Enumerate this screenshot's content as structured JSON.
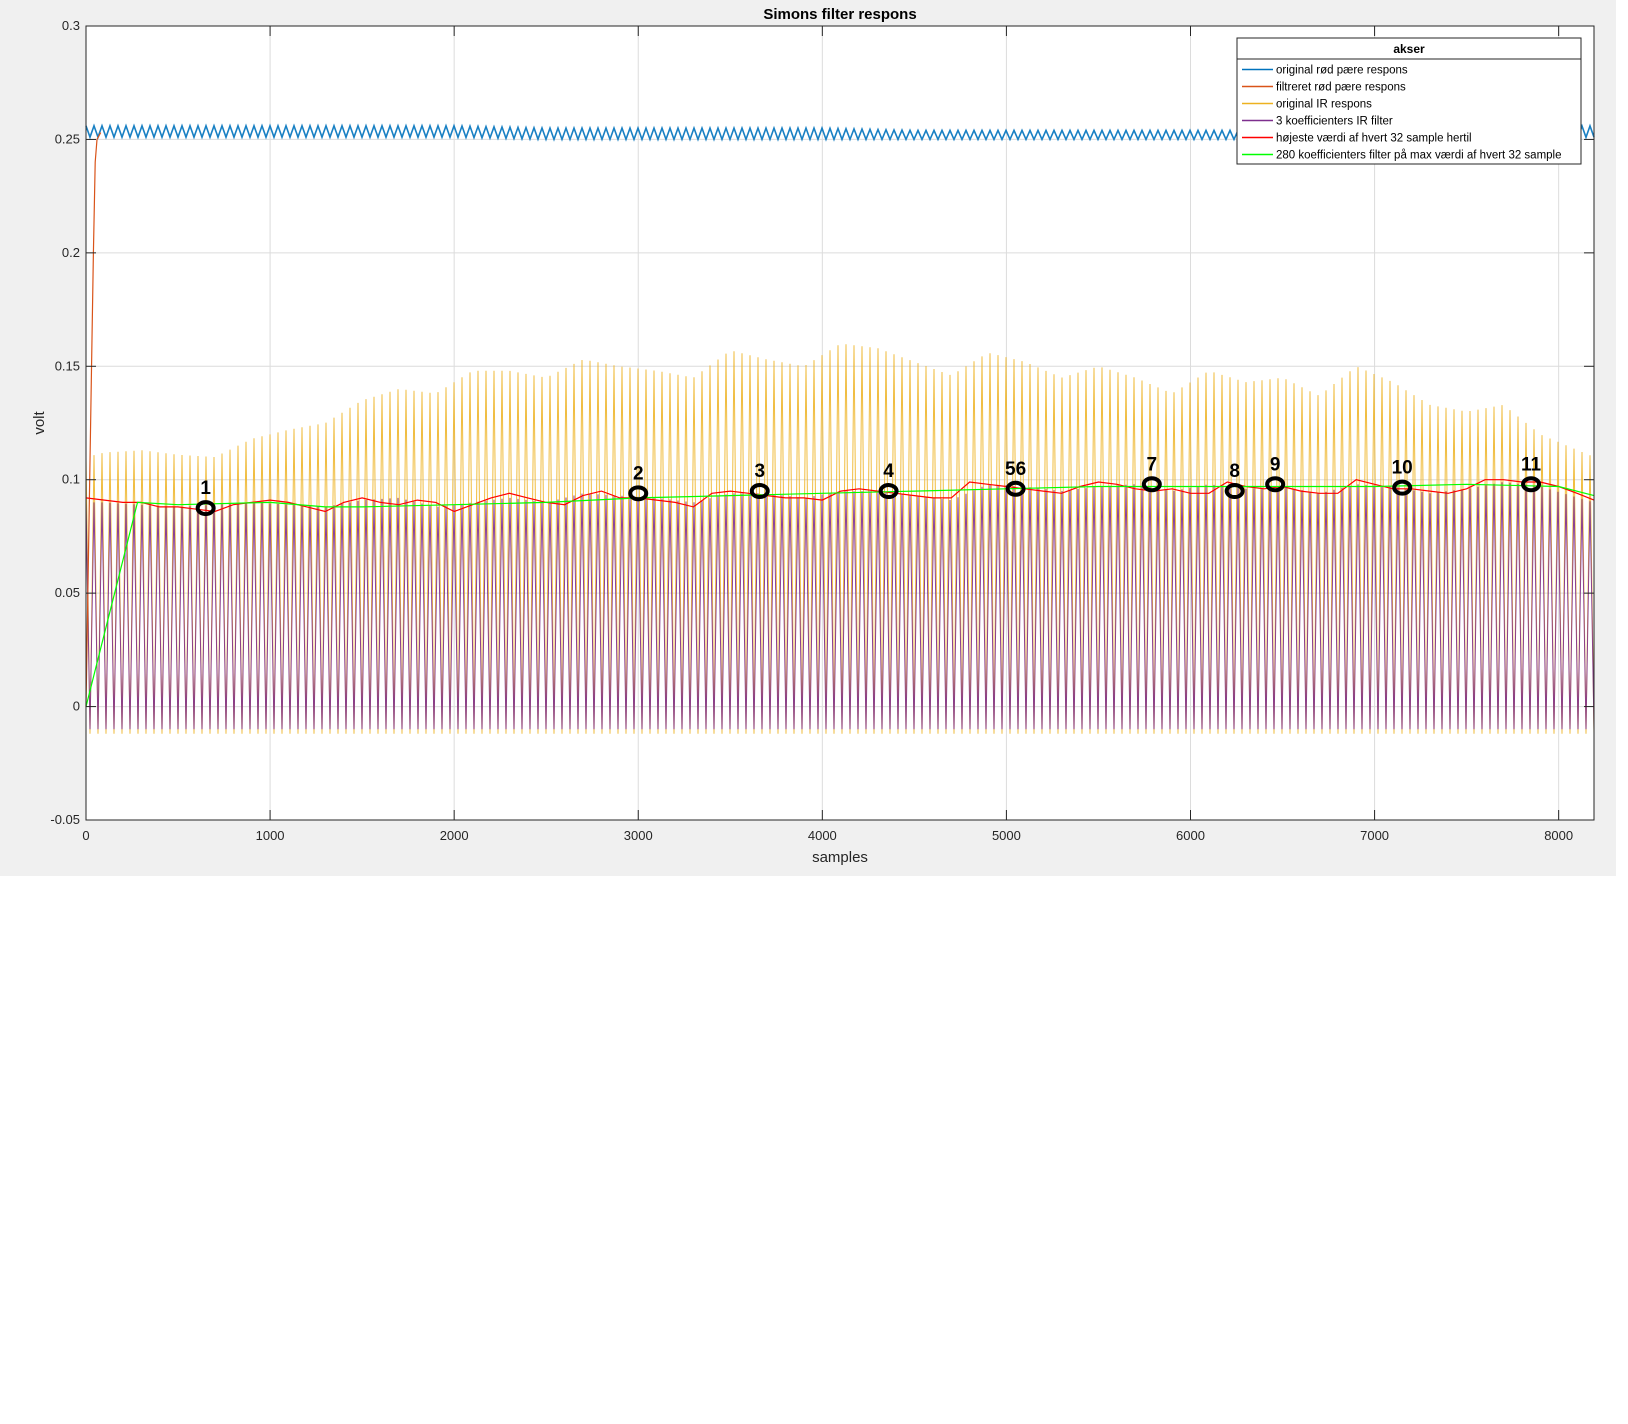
{
  "chart_data": {
    "type": "line",
    "title": "Simons filter respons",
    "xlabel": "samples",
    "ylabel": "volt",
    "xlim": [
      0,
      8192
    ],
    "ylim": [
      -0.05,
      0.3
    ],
    "xticks": [
      "0",
      "1000",
      "2000",
      "3000",
      "4000",
      "5000",
      "6000",
      "7000",
      "8000"
    ],
    "yticks": [
      "-0.05",
      "0",
      "0.05",
      "0.1",
      "0.15",
      "0.2",
      "0.25",
      "0.3"
    ],
    "grid": true,
    "legend": {
      "title": "akser",
      "placement": "top-right",
      "entries": [
        {
          "name": "original rød pære respons",
          "color": "#0072bd"
        },
        {
          "name": "filtreret rød pære respons",
          "color": "#d95319"
        },
        {
          "name": "original IR respons",
          "color": "#edb120"
        },
        {
          "name": "3 koefficienters IR filter",
          "color": "#7e2f8e"
        },
        {
          "name": "højeste værdi af hvert 32 sample hertil",
          "color": "#ff0000"
        },
        {
          "name": "280 koefficienters filter på max værdi af hvert 32 sample",
          "color": "#00ff00"
        }
      ]
    },
    "series": [
      {
        "name": "original rød pære respons",
        "color": "#0072bd",
        "oscillating": true,
        "x": [
          0,
          500,
          1000,
          1500,
          2000,
          2500,
          3000,
          3500,
          4000,
          4500,
          5000,
          5500,
          6000,
          6500,
          7000,
          7500,
          8192
        ],
        "upper": [
          0.256,
          0.256,
          0.256,
          0.256,
          0.256,
          0.255,
          0.255,
          0.255,
          0.255,
          0.254,
          0.254,
          0.254,
          0.254,
          0.254,
          0.254,
          0.255,
          0.256
        ],
        "lower": [
          0.251,
          0.251,
          0.251,
          0.251,
          0.251,
          0.25,
          0.25,
          0.25,
          0.25,
          0.25,
          0.25,
          0.25,
          0.25,
          0.25,
          0.25,
          0.25,
          0.251
        ]
      },
      {
        "name": "filtreret rød pære respons",
        "color": "#d95319",
        "x": [
          0,
          20,
          40,
          50,
          60,
          80
        ],
        "y": [
          0,
          0.1,
          0.2,
          0.24,
          0.25,
          0.253
        ]
      },
      {
        "name": "original IR respons",
        "color": "#edb120",
        "oscillating": true,
        "x": [
          0,
          100,
          300,
          500,
          700,
          900,
          1100,
          1300,
          1500,
          1700,
          1900,
          2100,
          2300,
          2500,
          2700,
          2900,
          3100,
          3300,
          3500,
          3700,
          3900,
          4100,
          4300,
          4500,
          4700,
          4900,
          5100,
          5300,
          5500,
          5700,
          5900,
          6100,
          6300,
          6500,
          6700,
          6900,
          7100,
          7300,
          7500,
          7700,
          7900,
          8192
        ],
        "upper": [
          0.11,
          0.112,
          0.113,
          0.111,
          0.11,
          0.118,
          0.122,
          0.125,
          0.135,
          0.14,
          0.138,
          0.148,
          0.148,
          0.145,
          0.153,
          0.15,
          0.148,
          0.145,
          0.157,
          0.153,
          0.15,
          0.16,
          0.158,
          0.152,
          0.146,
          0.156,
          0.152,
          0.145,
          0.15,
          0.145,
          0.138,
          0.148,
          0.143,
          0.145,
          0.137,
          0.15,
          0.143,
          0.133,
          0.13,
          0.133,
          0.12,
          0.11
        ],
        "lower": [
          -0.012,
          -0.012,
          -0.012,
          -0.012,
          -0.012,
          -0.012,
          -0.012,
          -0.012,
          -0.012,
          -0.012,
          -0.012,
          -0.012,
          -0.012,
          -0.012,
          -0.012,
          -0.012,
          -0.012,
          -0.012,
          -0.012,
          -0.012,
          -0.012,
          -0.012,
          -0.012,
          -0.012,
          -0.012,
          -0.012,
          -0.012,
          -0.012,
          -0.012,
          -0.012,
          -0.012,
          -0.012,
          -0.012,
          -0.012,
          -0.012,
          -0.012,
          -0.012,
          -0.012,
          -0.012,
          -0.012,
          -0.012,
          -0.012
        ]
      },
      {
        "name": "3 koefficienters IR filter",
        "color": "#7e2f8e",
        "oscillating": true,
        "x": [
          0,
          100,
          300,
          500,
          700,
          900,
          1100,
          1300,
          1500,
          1700,
          1900,
          2100,
          2300,
          2500,
          2700,
          2900,
          3100,
          3300,
          3500,
          3700,
          3900,
          4100,
          4300,
          4500,
          4700,
          4900,
          5100,
          5300,
          5500,
          5700,
          5900,
          6100,
          6300,
          6500,
          6700,
          6900,
          7100,
          7300,
          7500,
          7700,
          7900,
          8192
        ],
        "upper": [
          0.09,
          0.09,
          0.089,
          0.088,
          0.089,
          0.09,
          0.089,
          0.088,
          0.091,
          0.092,
          0.088,
          0.09,
          0.092,
          0.09,
          0.094,
          0.093,
          0.092,
          0.09,
          0.094,
          0.094,
          0.092,
          0.095,
          0.095,
          0.093,
          0.091,
          0.098,
          0.097,
          0.095,
          0.097,
          0.098,
          0.095,
          0.098,
          0.096,
          0.097,
          0.094,
          0.098,
          0.097,
          0.094,
          0.096,
          0.099,
          0.097,
          0.09
        ],
        "lower": [
          -0.01,
          -0.01,
          -0.01,
          -0.01,
          -0.01,
          -0.01,
          -0.01,
          -0.01,
          -0.01,
          -0.01,
          -0.01,
          -0.01,
          -0.01,
          -0.01,
          -0.01,
          -0.01,
          -0.01,
          -0.01,
          -0.01,
          -0.01,
          -0.01,
          -0.01,
          -0.01,
          -0.01,
          -0.01,
          -0.01,
          -0.01,
          -0.01,
          -0.01,
          -0.01,
          -0.01,
          -0.01,
          -0.01,
          -0.01,
          -0.01,
          -0.01,
          -0.01,
          -0.01,
          -0.01,
          -0.01,
          -0.01,
          -0.01
        ]
      },
      {
        "name": "højeste værdi af hvert 32 sample hertil",
        "color": "#ff0000",
        "x": [
          0,
          100,
          200,
          300,
          400,
          500,
          600,
          700,
          800,
          900,
          1000,
          1100,
          1200,
          1300,
          1400,
          1500,
          1600,
          1700,
          1800,
          1900,
          2000,
          2100,
          2200,
          2300,
          2400,
          2500,
          2600,
          2700,
          2800,
          2900,
          3000,
          3100,
          3200,
          3300,
          3400,
          3500,
          3600,
          3700,
          3800,
          3900,
          4000,
          4100,
          4200,
          4300,
          4400,
          4500,
          4600,
          4700,
          4800,
          4900,
          5000,
          5100,
          5200,
          5300,
          5400,
          5500,
          5600,
          5700,
          5800,
          5900,
          6000,
          6100,
          6200,
          6300,
          6400,
          6500,
          6600,
          6700,
          6800,
          6900,
          7000,
          7100,
          7200,
          7300,
          7400,
          7500,
          7600,
          7700,
          7800,
          7900,
          8000,
          8100,
          8192
        ],
        "y": [
          0.092,
          0.091,
          0.09,
          0.09,
          0.088,
          0.088,
          0.087,
          0.086,
          0.089,
          0.09,
          0.091,
          0.09,
          0.088,
          0.086,
          0.09,
          0.092,
          0.09,
          0.089,
          0.091,
          0.09,
          0.086,
          0.089,
          0.092,
          0.094,
          0.092,
          0.09,
          0.089,
          0.093,
          0.095,
          0.092,
          0.092,
          0.091,
          0.09,
          0.088,
          0.094,
          0.095,
          0.094,
          0.093,
          0.092,
          0.092,
          0.091,
          0.095,
          0.096,
          0.095,
          0.094,
          0.093,
          0.092,
          0.092,
          0.099,
          0.098,
          0.097,
          0.096,
          0.095,
          0.094,
          0.097,
          0.099,
          0.098,
          0.096,
          0.095,
          0.096,
          0.094,
          0.094,
          0.099,
          0.097,
          0.096,
          0.097,
          0.095,
          0.094,
          0.094,
          0.1,
          0.098,
          0.096,
          0.096,
          0.095,
          0.094,
          0.096,
          0.1,
          0.1,
          0.099,
          0.099,
          0.097,
          0.094,
          0.091
        ]
      },
      {
        "name": "280 koefficienters filter på max værdi af hvert 32 sample",
        "color": "#00ff00",
        "x": [
          0,
          280,
          500,
          1000,
          1300,
          1500,
          2000,
          2500,
          3000,
          3500,
          4000,
          4500,
          5000,
          5500,
          6000,
          6500,
          7000,
          7500,
          8000,
          8192
        ],
        "y": [
          0,
          0.09,
          0.089,
          0.09,
          0.088,
          0.088,
          0.089,
          0.09,
          0.092,
          0.093,
          0.094,
          0.095,
          0.096,
          0.097,
          0.097,
          0.097,
          0.097,
          0.098,
          0.097,
          0.093
        ]
      }
    ],
    "annotations": [
      {
        "label": "1",
        "x": 650,
        "y": 0.0875
      },
      {
        "label": "2",
        "x": 3000,
        "y": 0.094
      },
      {
        "label": "3",
        "x": 3660,
        "y": 0.095
      },
      {
        "label": "4",
        "x": 4360,
        "y": 0.095
      },
      {
        "label": "56",
        "x": 5050,
        "y": 0.096
      },
      {
        "label": "7",
        "x": 5790,
        "y": 0.098
      },
      {
        "label": "8",
        "x": 6240,
        "y": 0.095
      },
      {
        "label": "9",
        "x": 6460,
        "y": 0.098
      },
      {
        "label": "10",
        "x": 7150,
        "y": 0.0965
      },
      {
        "label": "11",
        "x": 7850,
        "y": 0.098
      }
    ]
  }
}
